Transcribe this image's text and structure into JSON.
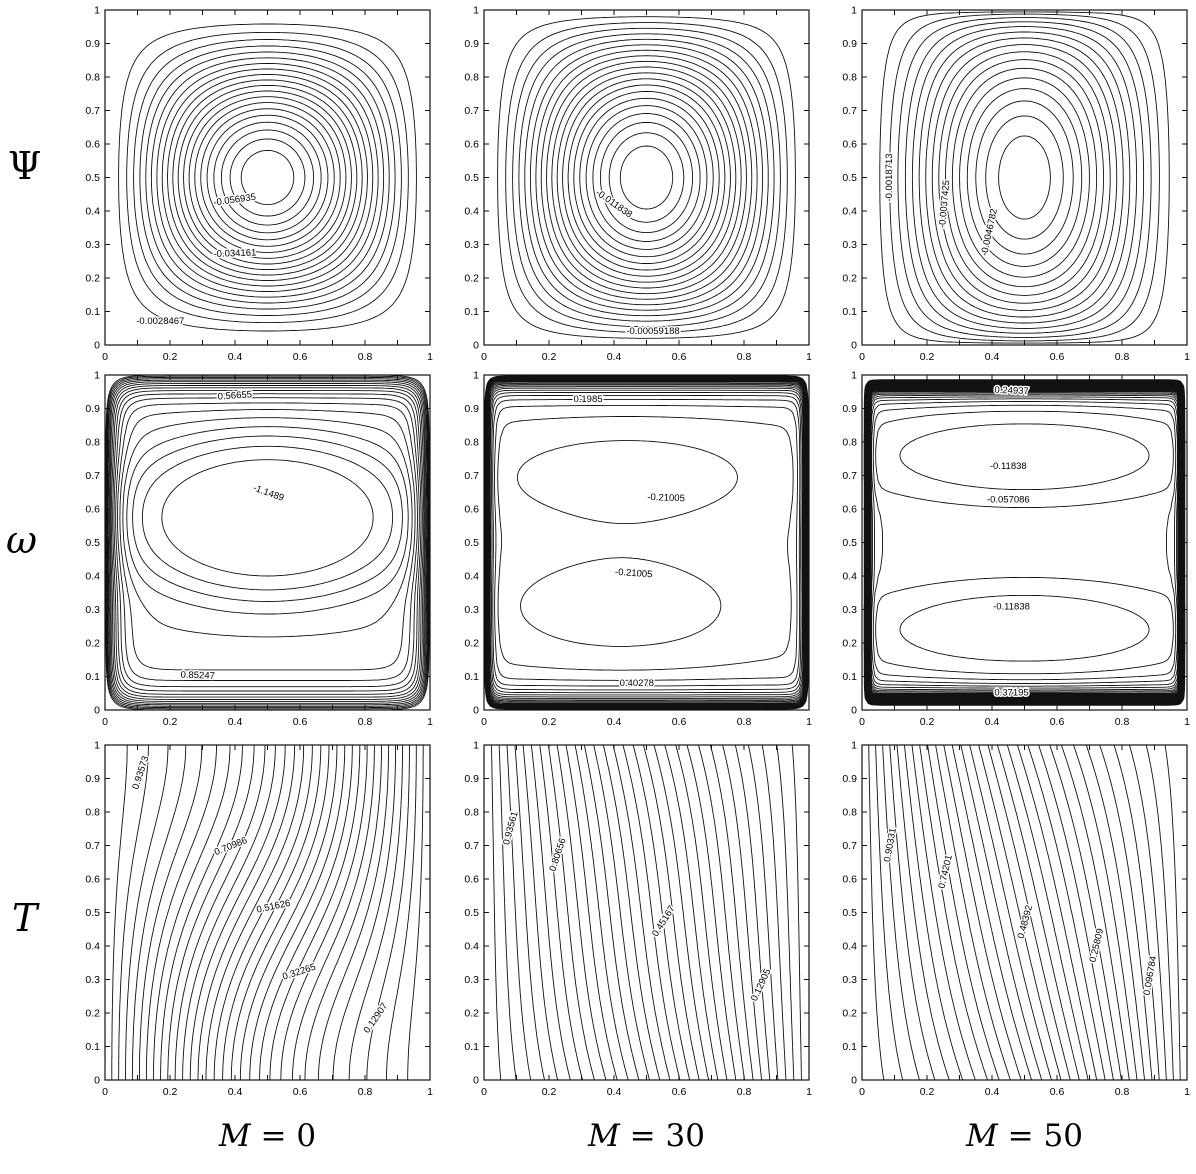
{
  "figure": {
    "background": "#ffffff",
    "line_color": "#111111",
    "description": "3x3 grid of contour plots: rows = stream function, vorticity, temperature; columns = magnetic field parameter M"
  },
  "rows": [
    {
      "label": "Ψ",
      "quantity": "stream function"
    },
    {
      "label": "ω",
      "quantity": "vorticity"
    },
    {
      "label": "T",
      "quantity": "temperature"
    }
  ],
  "cols": [
    {
      "var": "M",
      "rest": " = 0",
      "caption": "M = 0",
      "value": 0
    },
    {
      "var": "M",
      "rest": " = 30",
      "caption": "M = 30",
      "value": 30
    },
    {
      "var": "M",
      "rest": " = 50",
      "caption": "M = 50",
      "value": 50
    }
  ],
  "axes": {
    "xlim": [
      0,
      1
    ],
    "ylim": [
      0,
      1
    ],
    "tick_step": 0.1,
    "x_tick_values": [
      0,
      0.2,
      0.4,
      0.6,
      0.8,
      1
    ],
    "x_tick_labels": [
      "0",
      "0.2",
      "0.4",
      "0.6",
      "0.8",
      "1"
    ],
    "y_tick_values": [
      0,
      0.1,
      0.2,
      0.3,
      0.4,
      0.5,
      0.6,
      0.7,
      0.8,
      0.9,
      1
    ],
    "y_tick_labels": [
      "0",
      "0.1",
      "0.2",
      "0.3",
      "0.4",
      "0.5",
      "0.6",
      "0.7",
      "0.8",
      "0.9",
      "1"
    ]
  },
  "chart_data": [
    {
      "id": "psi-m0",
      "type": "contour",
      "row": "Ψ",
      "col": "M = 0",
      "xlim": [
        0,
        1
      ],
      "ylim": [
        0,
        1
      ],
      "level_start": -0.056935,
      "level_step": 0.00284675,
      "level_count": 20,
      "contour_labels": [
        {
          "value": -0.056935,
          "text": "-0.056935",
          "x": 0.4,
          "y": 0.425,
          "rot": -8
        },
        {
          "value": -0.034161,
          "text": "-0.034161",
          "x": 0.4,
          "y": 0.265,
          "rot": -2
        },
        {
          "value": -0.0028467,
          "text": "-0.0028467",
          "x": 0.17,
          "y": 0.062,
          "rot": 0
        }
      ],
      "field": {
        "kind": "psi",
        "A": 0.0598,
        "px": 1.5,
        "py": 1.5
      }
    },
    {
      "id": "psi-m30",
      "type": "contour",
      "row": "Ψ",
      "col": "M = 30",
      "xlim": [
        0,
        1
      ],
      "ylim": [
        0,
        1
      ],
      "level_start": -0.011838,
      "level_step": 0.00059188,
      "level_count": 20,
      "contour_labels": [
        {
          "value": -0.011838,
          "text": "-0.011838",
          "x": 0.395,
          "y": 0.415,
          "rot": 35
        },
        {
          "value": -0.00059188,
          "text": "-0.00059188",
          "x": 0.52,
          "y": 0.033,
          "rot": 0
        }
      ],
      "field": {
        "kind": "psi",
        "A": 0.01243,
        "px": 1.5,
        "py": 1.1
      }
    },
    {
      "id": "psi-m50",
      "type": "contour",
      "row": "Ψ",
      "col": "M = 50",
      "xlim": [
        0,
        1
      ],
      "ylim": [
        0,
        1
      ],
      "level_start": -0.0049901,
      "level_step": 0.00031188,
      "level_count": 16,
      "contour_labels": [
        {
          "value": -0.0018713,
          "text": "-0.0018713",
          "x": 0.092,
          "y": 0.5,
          "rot": -90
        },
        {
          "value": -0.0037425,
          "text": "-0.0037425",
          "x": 0.262,
          "y": 0.42,
          "rot": -85
        },
        {
          "value": -0.0046782,
          "text": "-0.0046782",
          "x": 0.4,
          "y": 0.335,
          "rot": -78
        }
      ],
      "field": {
        "kind": "psi",
        "A": 0.00525,
        "px": 1.6,
        "py": 0.65
      }
    },
    {
      "id": "omega-m0",
      "type": "contour",
      "row": "ω",
      "col": "M = 0",
      "xlim": [
        0,
        1
      ],
      "ylim": [
        0,
        1
      ],
      "level_start": -1.4349,
      "level_step": 0.28592,
      "level_count": 20,
      "contour_labels": [
        {
          "value": 0.56655,
          "text": "0.56655",
          "x": 0.4,
          "y": 0.93,
          "rot": -4
        },
        {
          "value": -1.1489,
          "text": "-1.1489",
          "x": 0.5,
          "y": 0.64,
          "rot": 20
        },
        {
          "value": 0.85247,
          "text": "0.85247",
          "x": 0.285,
          "y": 0.095,
          "rot": 2
        }
      ],
      "field": {
        "kind": "omega",
        "sideAmp": 4.3,
        "sideDelta": 0.03,
        "capAmp": 4.0,
        "capDelta": 0.045,
        "blobs": [
          {
            "cx": 0.5,
            "cy": 0.575,
            "rx": 0.486,
            "ry": 0.258,
            "depth": 1.42,
            "p": 4
          }
        ]
      }
    },
    {
      "id": "omega-m30",
      "type": "contour",
      "row": "ω",
      "col": "M = 30",
      "xlim": [
        0,
        1
      ],
      "ylim": [
        0,
        1
      ],
      "level_start": -0.41433,
      "level_step": 0.20428,
      "level_count": 22,
      "contour_labels": [
        {
          "value": 0.1985,
          "text": "0.1985",
          "x": 0.32,
          "y": 0.92,
          "rot": 0
        },
        {
          "value": -0.21005,
          "text": "-0.21005",
          "x": 0.56,
          "y": 0.625,
          "rot": 2
        },
        {
          "value": -0.21005,
          "text": "-0.21005",
          "x": 0.46,
          "y": 0.4,
          "rot": 4
        },
        {
          "value": 0.40278,
          "text": "0.40278",
          "x": 0.47,
          "y": 0.072,
          "rot": 0
        }
      ],
      "field": {
        "kind": "omega",
        "sideAmp": 4.2,
        "sideDelta": 0.013,
        "capAmp": 4.2,
        "capDelta": 0.032,
        "blobs": [
          {
            "cx": 0.44,
            "cy": 0.695,
            "rx": 0.506,
            "ry": 0.171,
            "depth": 0.3,
            "p": 2.6
          },
          {
            "cx": 0.42,
            "cy": 0.31,
            "rx": 0.46,
            "ry": 0.19,
            "depth": 0.3,
            "p": 2.6
          }
        ]
      }
    },
    {
      "id": "omega-m50",
      "type": "contour",
      "row": "ω",
      "col": "M = 50",
      "xlim": [
        0,
        1
      ],
      "ylim": [
        0,
        1
      ],
      "level_start": -0.11838,
      "level_step": 0.061294,
      "level_count": 40,
      "contour_labels": [
        {
          "value": 0.24937,
          "text": "0.24937",
          "x": 0.46,
          "y": 0.945,
          "rot": 2
        },
        {
          "value": -0.11838,
          "text": "-0.11838",
          "x": 0.45,
          "y": 0.72,
          "rot": 0
        },
        {
          "value": -0.057086,
          "text": "-0.057086",
          "x": 0.45,
          "y": 0.62,
          "rot": 0
        },
        {
          "value": -0.11838,
          "text": "-0.11838",
          "x": 0.46,
          "y": 0.3,
          "rot": 0
        },
        {
          "value": 0.37195,
          "text": "0.37195",
          "x": 0.46,
          "y": 0.043,
          "rot": 0
        }
      ],
      "field": {
        "kind": "omega",
        "sideAmp": 4.2,
        "sideDelta": 0.009,
        "capAmp": 4.2,
        "capDelta": 0.022,
        "blobs": [
          {
            "cx": 0.5,
            "cy": 0.76,
            "rx": 0.6,
            "ry": 0.16,
            "depth": 0.14,
            "p": 4
          },
          {
            "cx": 0.5,
            "cy": 0.24,
            "rx": 0.6,
            "ry": 0.16,
            "depth": 0.14,
            "p": 4
          }
        ]
      }
    },
    {
      "id": "temp-m0",
      "type": "contour",
      "row": "T",
      "col": "M = 0",
      "xlim": [
        0,
        1
      ],
      "ylim": [
        0,
        1
      ],
      "level_start": 0.032264,
      "level_step": 0.032264,
      "level_count": 30,
      "contour_labels": [
        {
          "value": 0.93573,
          "text": "0.93573",
          "x": 0.118,
          "y": 0.915,
          "rot": -72
        },
        {
          "value": 0.70986,
          "text": "0.70986",
          "x": 0.39,
          "y": 0.69,
          "rot": -22
        },
        {
          "value": 0.51626,
          "text": "0.51626",
          "x": 0.52,
          "y": 0.51,
          "rot": -12
        },
        {
          "value": 0.32265,
          "text": "0.32265",
          "x": 0.6,
          "y": 0.315,
          "rot": -18
        },
        {
          "value": 0.12907,
          "text": "0.12907",
          "x": 0.84,
          "y": 0.18,
          "rot": -55
        }
      ],
      "field": {
        "kind": "temp",
        "c": 0.17,
        "d": 0
      }
    },
    {
      "id": "temp-m30",
      "type": "contour",
      "row": "T",
      "col": "M = 30",
      "xlim": [
        0,
        1
      ],
      "ylim": [
        0,
        1
      ],
      "level_start": 0.032264,
      "level_step": 0.032264,
      "level_count": 30,
      "contour_labels": [
        {
          "value": 0.93561,
          "text": "0.93561",
          "x": 0.09,
          "y": 0.75,
          "rot": -75
        },
        {
          "value": 0.80656,
          "text": "0.80656",
          "x": 0.235,
          "y": 0.67,
          "rot": -72
        },
        {
          "value": 0.45167,
          "text": "0.45167",
          "x": 0.56,
          "y": 0.47,
          "rot": -58
        },
        {
          "value": 0.12905,
          "text": "0.12905",
          "x": 0.86,
          "y": 0.28,
          "rot": -65
        }
      ],
      "field": {
        "kind": "temp",
        "c": 0.05,
        "d": 0.28
      }
    },
    {
      "id": "temp-m50",
      "type": "contour",
      "row": "T",
      "col": "M = 50",
      "xlim": [
        0,
        1
      ],
      "ylim": [
        0,
        1
      ],
      "level_start": 0.032264,
      "level_step": 0.032264,
      "level_count": 30,
      "contour_labels": [
        {
          "value": 0.90331,
          "text": "0.90331",
          "x": 0.095,
          "y": 0.7,
          "rot": -80
        },
        {
          "value": 0.74201,
          "text": "0.74201",
          "x": 0.265,
          "y": 0.62,
          "rot": -77
        },
        {
          "value": 0.48392,
          "text": "0.48392",
          "x": 0.51,
          "y": 0.47,
          "rot": -75
        },
        {
          "value": 0.25809,
          "text": "0.25809",
          "x": 0.73,
          "y": 0.4,
          "rot": -77
        },
        {
          "value": 0.096784,
          "text": "0.096784",
          "x": 0.895,
          "y": 0.31,
          "rot": -80
        }
      ],
      "field": {
        "kind": "temp",
        "c": 0.03,
        "d": 0.33
      }
    }
  ]
}
